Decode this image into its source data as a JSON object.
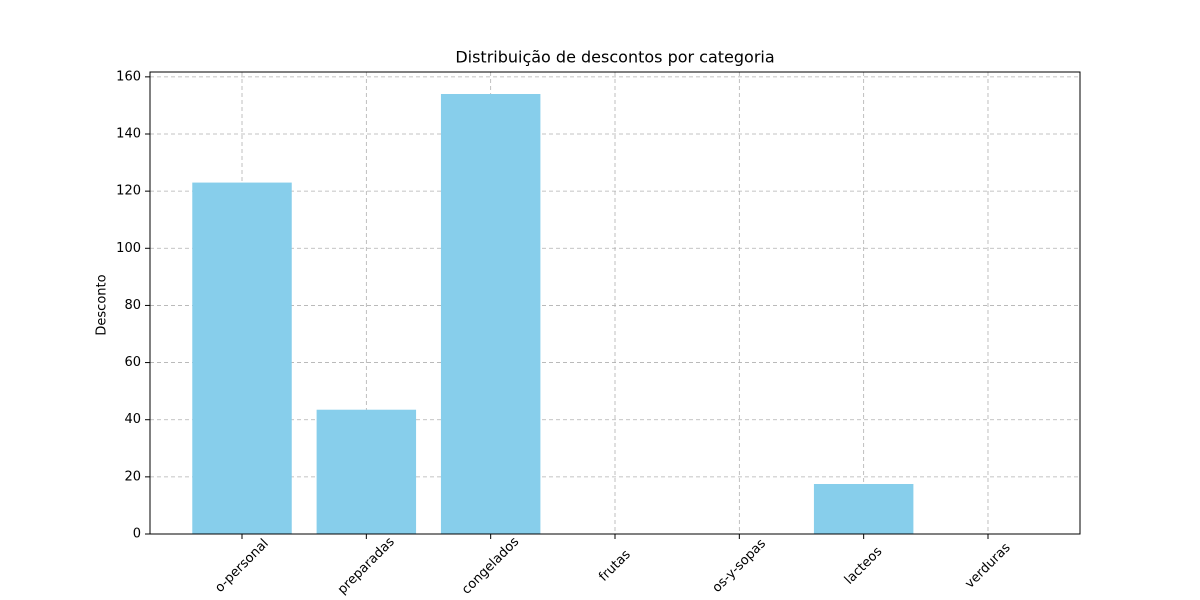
{
  "chart_data": {
    "type": "bar",
    "title": "Distribuição de descontos por categoria",
    "ylabel": "Desconto",
    "categories": [
      "o-personal",
      "preparadas",
      "congelados",
      "frutas",
      "os-y-sopas",
      "lacteos",
      "verduras"
    ],
    "values": [
      123,
      43.5,
      154,
      0,
      0,
      17.5,
      0
    ],
    "color": "#87ceeb",
    "ylim": [
      0,
      161.7
    ],
    "yticks": [
      0,
      20,
      40,
      60,
      80,
      100,
      120,
      140,
      160
    ],
    "grid": true
  }
}
